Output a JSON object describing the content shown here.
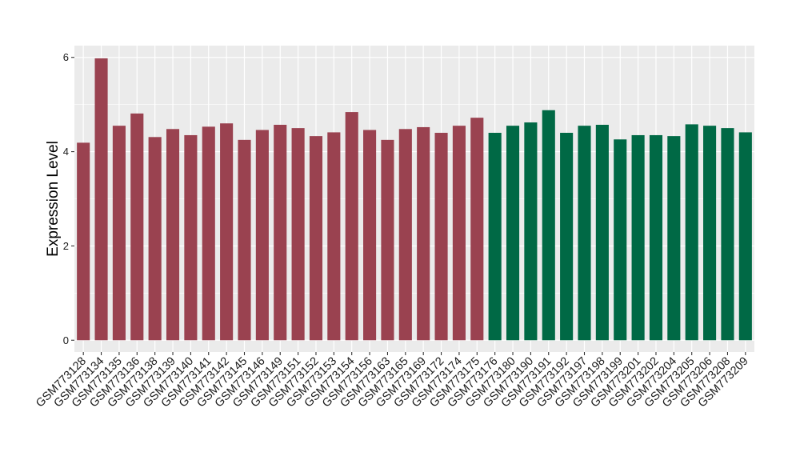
{
  "chart_data": {
    "type": "bar",
    "title": "",
    "xlabel": "",
    "ylabel": "Expression Level",
    "ylim": [
      -0.25,
      6.25
    ],
    "yticks": [
      0,
      2,
      4,
      6
    ],
    "ytick_labels": [
      "0",
      "2",
      "4",
      "6"
    ],
    "grid": true,
    "legend": "none",
    "colors": {
      "group1": "#9A4250",
      "group2": "#006945",
      "panel": "#EBEBEB",
      "gridline": "#FFFFFF"
    },
    "categories": [
      "GSM773128",
      "GSM773134",
      "GSM773135",
      "GSM773136",
      "GSM773138",
      "GSM773139",
      "GSM773140",
      "GSM773141",
      "GSM773142",
      "GSM773145",
      "GSM773146",
      "GSM773149",
      "GSM773151",
      "GSM773152",
      "GSM773153",
      "GSM773154",
      "GSM773156",
      "GSM773163",
      "GSM773165",
      "GSM773169",
      "GSM773172",
      "GSM773174",
      "GSM773175",
      "GSM773176",
      "GSM773180",
      "GSM773190",
      "GSM773191",
      "GSM773192",
      "GSM773197",
      "GSM773198",
      "GSM773199",
      "GSM773201",
      "GSM773202",
      "GSM773204",
      "GSM773205",
      "GSM773206",
      "GSM773208",
      "GSM773209"
    ],
    "values": [
      4.19,
      5.98,
      4.55,
      4.81,
      4.31,
      4.48,
      4.35,
      4.53,
      4.6,
      4.25,
      4.46,
      4.57,
      4.5,
      4.33,
      4.41,
      4.84,
      4.46,
      4.25,
      4.48,
      4.52,
      4.4,
      4.55,
      4.72,
      4.4,
      4.55,
      4.62,
      4.88,
      4.4,
      4.55,
      4.57,
      4.26,
      4.35,
      4.35,
      4.33,
      4.58,
      4.55,
      4.5,
      4.41
    ],
    "groups": [
      1,
      1,
      1,
      1,
      1,
      1,
      1,
      1,
      1,
      1,
      1,
      1,
      1,
      1,
      1,
      1,
      1,
      1,
      1,
      1,
      1,
      1,
      1,
      2,
      2,
      2,
      2,
      2,
      2,
      2,
      2,
      2,
      2,
      2,
      2,
      2,
      2,
      2
    ]
  }
}
